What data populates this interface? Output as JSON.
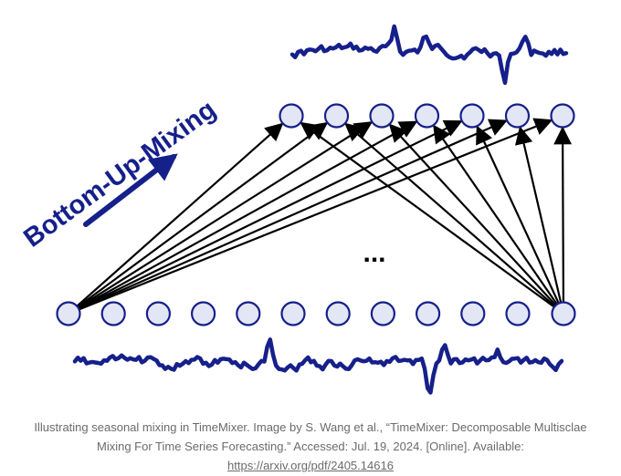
{
  "diagram": {
    "label": "Bottom-Up-Mixing",
    "ellipsis": "...",
    "colors": {
      "accent": "#16208a",
      "node_fill": "#e3e6f4",
      "node_stroke": "#16208a",
      "connection": "#000000"
    },
    "top_layer_node_count": 7,
    "bottom_layer_node_count": 12
  },
  "caption": {
    "text": "Illustrating seasonal mixing in TimeMixer. Image by S. Wang et al., “TimeMixer: Decomposable Multisclae Mixing For Time Series Forecasting.” Accessed: Jul. 19, 2024. [Online]. Available:",
    "link_text": "https://arxiv.org/pdf/2405.14616"
  }
}
